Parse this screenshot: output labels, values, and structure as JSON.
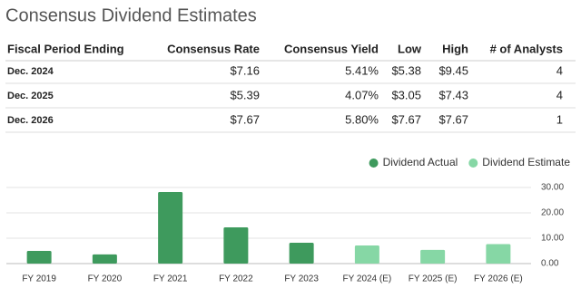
{
  "title": "Consensus Dividend Estimates",
  "table": {
    "header": [
      "Fiscal Period Ending",
      "Consensus Rate",
      "Consensus Yield",
      "Low",
      "High",
      "# of Analysts"
    ],
    "rows": [
      [
        "Dec. 2024",
        "$7.16",
        "5.41%",
        "$5.38",
        "$9.45",
        "4"
      ],
      [
        "Dec. 2025",
        "$5.39",
        "4.07%",
        "$3.05",
        "$7.43",
        "4"
      ],
      [
        "Dec. 2026",
        "$7.67",
        "5.80%",
        "$7.67",
        "$7.67",
        "1"
      ]
    ]
  },
  "chart_data": {
    "type": "bar",
    "categories": [
      "FY 2019",
      "FY 2020",
      "FY 2021",
      "FY 2022",
      "FY 2023",
      "FY 2024 (E)",
      "FY 2025 (E)",
      "FY 2026 (E)"
    ],
    "series": [
      {
        "name": "Dividend Actual",
        "color": "#3e9a5d",
        "values": [
          5.0,
          3.6,
          28.2,
          14.3,
          8.2,
          null,
          null,
          null
        ]
      },
      {
        "name": "Dividend Estimate",
        "color": "#86d7a5",
        "values": [
          null,
          null,
          null,
          null,
          null,
          7.16,
          5.39,
          7.67
        ]
      }
    ],
    "ylim": [
      0,
      30
    ],
    "yticks": [
      {
        "value": 0,
        "label": "0.00"
      },
      {
        "value": 10,
        "label": "10.00"
      },
      {
        "value": 20,
        "label": "20.00"
      },
      {
        "value": 30,
        "label": "30.00"
      }
    ],
    "grid": true,
    "legend": "top-right"
  }
}
